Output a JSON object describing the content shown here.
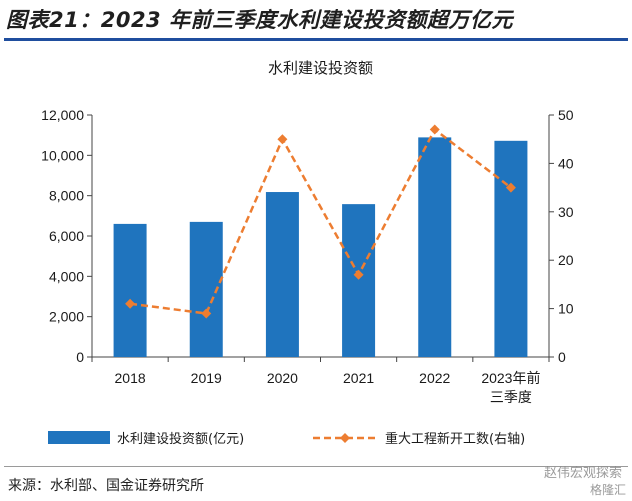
{
  "figure": {
    "title": "图表21：2023 年前三季度水利建设投资额超万亿元",
    "source": "来源：水利部、国金证券研究所",
    "watermark": "赵伟宏观探索",
    "watermark_sub": "格隆汇"
  },
  "colors": {
    "bar": "#1f74be",
    "line": "#ed7d31",
    "rule": "#1f4e9e"
  },
  "chart_data": {
    "type": "bar",
    "title": "水利建设投资额",
    "categories": [
      "2018",
      "2019",
      "2020",
      "2021",
      "2022",
      "2023年前三季度"
    ],
    "category_lines": [
      [
        "2018"
      ],
      [
        "2019"
      ],
      [
        "2020"
      ],
      [
        "2021"
      ],
      [
        "2022"
      ],
      [
        "2023年前",
        "三季度"
      ]
    ],
    "series": [
      {
        "name": "水利建设投资额(亿元)",
        "type": "bar",
        "axis": "left",
        "values": [
          6600,
          6700,
          8180,
          7580,
          10890,
          10720
        ]
      },
      {
        "name": "重大工程新开工数(右轴)",
        "type": "line",
        "style": "dashed-with-diamond-markers",
        "axis": "right",
        "values": [
          11,
          9,
          45,
          17,
          47,
          35
        ]
      }
    ],
    "y_left": {
      "range": [
        0,
        12000
      ],
      "ticks": [
        "0",
        "2,000",
        "4,000",
        "6,000",
        "8,000",
        "10,000",
        "12,000"
      ]
    },
    "y_right": {
      "range": [
        0,
        50
      ],
      "ticks": [
        "0",
        "10",
        "20",
        "30",
        "40",
        "50"
      ]
    },
    "grid": false,
    "legend_position": "bottom"
  }
}
